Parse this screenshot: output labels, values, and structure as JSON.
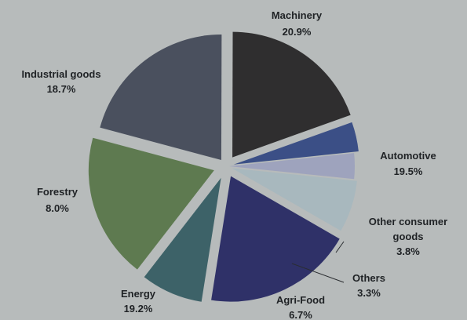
{
  "chart_data": {
    "type": "pie",
    "exploded": true,
    "slices": [
      {
        "name": "Machinery",
        "value": 20.9,
        "label": "20.9%",
        "color": "#4a505e"
      },
      {
        "name": "Automotive",
        "value": 19.5,
        "label": "19.5%",
        "color": "#2f2e2f"
      },
      {
        "name": "Other consumer goods",
        "value": 3.8,
        "label": "3.8%",
        "color": "#3b4f86"
      },
      {
        "name": "Others",
        "value": 3.3,
        "label": "3.3%",
        "color": "#9ea3bd"
      },
      {
        "name": "Agri-Food",
        "value": 6.7,
        "label": "6.7%",
        "color": "#a8b8be"
      },
      {
        "name": "Energy",
        "value": 19.2,
        "label": "19.2%",
        "color": "#2f3168"
      },
      {
        "name": "Forestry",
        "value": 8.0,
        "label": "8.0%",
        "color": "#3d6268"
      },
      {
        "name": "Industrial goods",
        "value": 18.7,
        "label": "18.7%",
        "color": "#5e7a50"
      }
    ]
  }
}
